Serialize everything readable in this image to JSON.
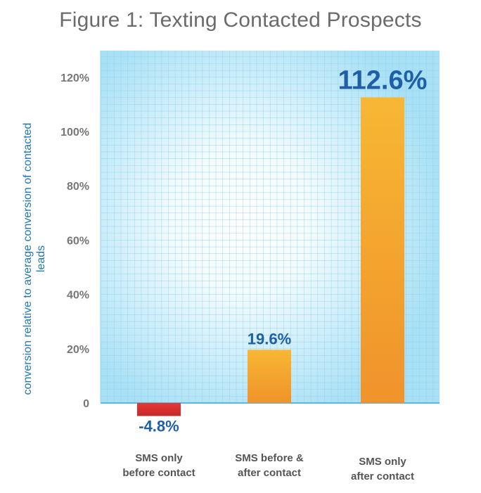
{
  "title": "Figure 1: Texting Contacted Prospects",
  "chart_data": {
    "type": "bar",
    "title": "Figure 1: Texting Contacted Prospects",
    "ylabel": "conversion relative to average conversion of contacted leads",
    "xlabel": "",
    "categories": [
      "SMS only before contact",
      "SMS before & after contact",
      "SMS only after contact"
    ],
    "category_lines": [
      [
        "SMS only",
        "before contact"
      ],
      [
        "SMS before &",
        "after contact"
      ],
      [
        "SMS only",
        "after contact"
      ]
    ],
    "values": [
      -4.8,
      19.6,
      112.6
    ],
    "value_labels": [
      "-4.8%",
      "19.6%",
      "112.6%"
    ],
    "yticks": [
      0,
      20,
      40,
      60,
      80,
      100,
      120
    ],
    "ytick_labels": [
      "0",
      "20%",
      "40%",
      "60%",
      "80%",
      "100%",
      "120%"
    ],
    "ylim": [
      -10,
      130
    ],
    "grid": true,
    "legend": "none",
    "colors": {
      "negative_bar": "#d32f2f",
      "positive_bar_top": "#f7b733",
      "positive_bar_bottom": "#f0932b",
      "value_label": "#1f5fa8",
      "plot_background_edge": "#a8e0f5",
      "plot_background_center": "#ffffff",
      "grid": "#8fd2ee"
    }
  }
}
